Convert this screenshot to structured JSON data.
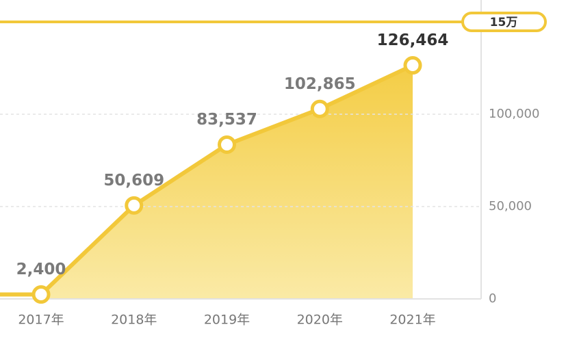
{
  "chart_data": {
    "type": "area",
    "categories": [
      "2017年",
      "2018年",
      "2019年",
      "2020年",
      "2021年"
    ],
    "values": [
      2400,
      50609,
      83537,
      102865,
      126464
    ],
    "value_labels": [
      "2,400",
      "50,609",
      "83,537",
      "102,865",
      "126,464"
    ],
    "color": "#f2c83a",
    "ylim": [
      0,
      150000
    ],
    "yticks": [
      0,
      {
        "value": 50000,
        "label": "50,000"
      },
      {
        "value": 100000,
        "label": "100,000"
      },
      {
        "value": 150000,
        "label": "15万"
      }
    ],
    "grid": true
  }
}
